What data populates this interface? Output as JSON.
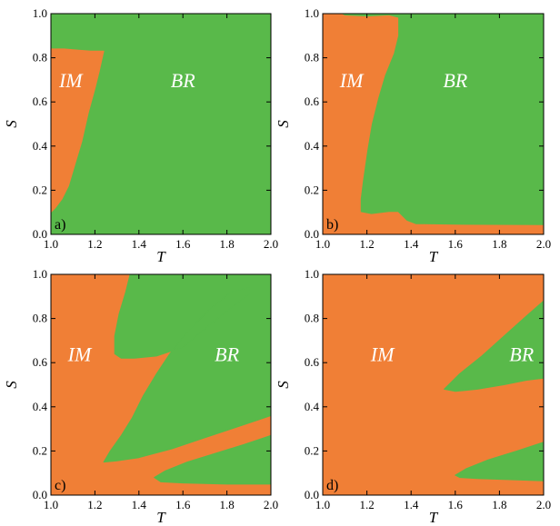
{
  "colors": {
    "IM": "#f07f36",
    "BR": "#59b94a",
    "axis": "#000000",
    "region_text": "#ffffff"
  },
  "chart_data": [
    {
      "type": "heatmap",
      "panel_label": "a)",
      "xlabel": "T",
      "ylabel": "S",
      "xlim": [
        1.0,
        2.0
      ],
      "ylim": [
        0.0,
        1.0
      ],
      "xticks": [
        "1.0",
        "1.2",
        "1.4",
        "1.6",
        "1.8",
        "2.0"
      ],
      "yticks": [
        "0.0",
        "0.2",
        "0.4",
        "0.6",
        "0.8",
        "1.0"
      ],
      "background_class": "BR",
      "region_labels": [
        {
          "text": "IM",
          "T": 1.09,
          "S": 0.7
        },
        {
          "text": "BR",
          "T": 1.6,
          "S": 0.7
        }
      ],
      "regions": [
        {
          "class": "IM",
          "boundary": [
            [
              1.0,
              0.84
            ],
            [
              1.06,
              0.84
            ],
            [
              1.12,
              0.835
            ],
            [
              1.18,
              0.83
            ],
            [
              1.24,
              0.83
            ],
            [
              1.22,
              0.74
            ],
            [
              1.2,
              0.66
            ],
            [
              1.17,
              0.55
            ],
            [
              1.14,
              0.42
            ],
            [
              1.11,
              0.32
            ],
            [
              1.08,
              0.22
            ],
            [
              1.05,
              0.16
            ],
            [
              1.02,
              0.12
            ],
            [
              1.0,
              0.1
            ]
          ]
        }
      ]
    },
    {
      "type": "heatmap",
      "panel_label": "b)",
      "xlabel": "T",
      "ylabel": "S",
      "xlim": [
        1.0,
        2.0
      ],
      "ylim": [
        0.0,
        1.0
      ],
      "xticks": [
        "1.0",
        "1.2",
        "1.4",
        "1.6",
        "1.8",
        "2.0"
      ],
      "yticks": [
        "0.0",
        "0.2",
        "0.4",
        "0.6",
        "0.8",
        "1.0"
      ],
      "background_class": "BR",
      "region_labels": [
        {
          "text": "IM",
          "T": 1.13,
          "S": 0.7
        },
        {
          "text": "BR",
          "T": 1.6,
          "S": 0.7
        }
      ],
      "regions": [
        {
          "class": "IM",
          "boundary": [
            [
              1.0,
              0.0
            ],
            [
              1.0,
              1.0
            ],
            [
              1.08,
              1.0
            ],
            [
              1.1,
              0.99
            ],
            [
              1.2,
              0.985
            ],
            [
              1.3,
              0.99
            ],
            [
              1.34,
              0.98
            ],
            [
              1.34,
              0.9
            ],
            [
              1.32,
              0.82
            ],
            [
              1.28,
              0.72
            ],
            [
              1.25,
              0.62
            ],
            [
              1.22,
              0.5
            ],
            [
              1.2,
              0.38
            ],
            [
              1.18,
              0.24
            ],
            [
              1.17,
              0.16
            ],
            [
              1.17,
              0.1
            ],
            [
              1.22,
              0.09
            ],
            [
              1.3,
              0.1
            ],
            [
              1.34,
              0.1
            ],
            [
              1.38,
              0.06
            ],
            [
              1.42,
              0.045
            ],
            [
              1.6,
              0.042
            ],
            [
              2.0,
              0.04
            ],
            [
              2.0,
              0.0
            ]
          ]
        }
      ]
    },
    {
      "type": "heatmap",
      "panel_label": "c)",
      "xlabel": "T",
      "ylabel": "S",
      "xlim": [
        1.0,
        2.0
      ],
      "ylim": [
        0.0,
        1.0
      ],
      "xticks": [
        "1.0",
        "1.2",
        "1.4",
        "1.6",
        "1.8",
        "2.0"
      ],
      "yticks": [
        "0.0",
        "0.2",
        "0.4",
        "0.6",
        "0.8",
        "1.0"
      ],
      "background_class": "IM",
      "region_labels": [
        {
          "text": "IM",
          "T": 1.13,
          "S": 0.64
        },
        {
          "text": "BR",
          "T": 1.8,
          "S": 0.64
        }
      ],
      "regions": [
        {
          "class": "BR",
          "boundary": [
            [
              1.36,
              1.0
            ],
            [
              2.0,
              1.0
            ],
            [
              2.0,
              0.36
            ],
            [
              1.94,
              0.34
            ],
            [
              1.82,
              0.3
            ],
            [
              1.7,
              0.26
            ],
            [
              1.55,
              0.21
            ],
            [
              1.4,
              0.17
            ],
            [
              1.3,
              0.155
            ],
            [
              1.24,
              0.15
            ],
            [
              1.27,
              0.2
            ],
            [
              1.32,
              0.27
            ],
            [
              1.37,
              0.35
            ],
            [
              1.42,
              0.45
            ],
            [
              1.48,
              0.55
            ],
            [
              1.54,
              0.64
            ],
            [
              1.62,
              0.74
            ],
            [
              1.72,
              0.84
            ],
            [
              1.82,
              0.92
            ],
            [
              1.9,
              0.94
            ],
            [
              1.9,
              0.91
            ],
            [
              1.82,
              0.85
            ],
            [
              1.72,
              0.77
            ],
            [
              1.6,
              0.67
            ],
            [
              1.48,
              0.63
            ],
            [
              1.38,
              0.62
            ],
            [
              1.32,
              0.62
            ],
            [
              1.29,
              0.64
            ],
            [
              1.29,
              0.72
            ],
            [
              1.31,
              0.82
            ],
            [
              1.34,
              0.92
            ]
          ]
        },
        {
          "class": "BR",
          "boundary": [
            [
              1.47,
              0.08
            ],
            [
              1.52,
              0.11
            ],
            [
              1.62,
              0.15
            ],
            [
              1.75,
              0.19
            ],
            [
              1.88,
              0.23
            ],
            [
              2.0,
              0.27
            ],
            [
              2.0,
              0.05
            ],
            [
              1.8,
              0.05
            ],
            [
              1.6,
              0.055
            ],
            [
              1.5,
              0.06
            ]
          ]
        }
      ]
    },
    {
      "type": "heatmap",
      "panel_label": "d)",
      "xlabel": "T",
      "ylabel": "S",
      "xlim": [
        1.0,
        2.0
      ],
      "ylim": [
        0.0,
        1.0
      ],
      "xticks": [
        "1.0",
        "1.2",
        "1.4",
        "1.6",
        "1.8",
        "2.0"
      ],
      "yticks": [
        "0.0",
        "0.2",
        "0.4",
        "0.6",
        "0.8",
        "1.0"
      ],
      "background_class": "IM",
      "region_labels": [
        {
          "text": "IM",
          "T": 1.27,
          "S": 0.64
        },
        {
          "text": "BR",
          "T": 1.9,
          "S": 0.64
        }
      ],
      "regions": [
        {
          "class": "BR",
          "boundary": [
            [
              1.55,
              0.48
            ],
            [
              1.6,
              0.47
            ],
            [
              1.7,
              0.48
            ],
            [
              1.82,
              0.5
            ],
            [
              1.92,
              0.52
            ],
            [
              2.0,
              0.53
            ],
            [
              2.0,
              0.88
            ],
            [
              1.92,
              0.81
            ],
            [
              1.82,
              0.72
            ],
            [
              1.72,
              0.63
            ],
            [
              1.62,
              0.55
            ]
          ]
        },
        {
          "class": "BR",
          "boundary": [
            [
              1.6,
              0.09
            ],
            [
              1.65,
              0.12
            ],
            [
              1.75,
              0.16
            ],
            [
              1.88,
              0.2
            ],
            [
              2.0,
              0.24
            ],
            [
              2.0,
              0.065
            ],
            [
              1.85,
              0.07
            ],
            [
              1.7,
              0.075
            ],
            [
              1.62,
              0.08
            ]
          ]
        }
      ]
    }
  ]
}
